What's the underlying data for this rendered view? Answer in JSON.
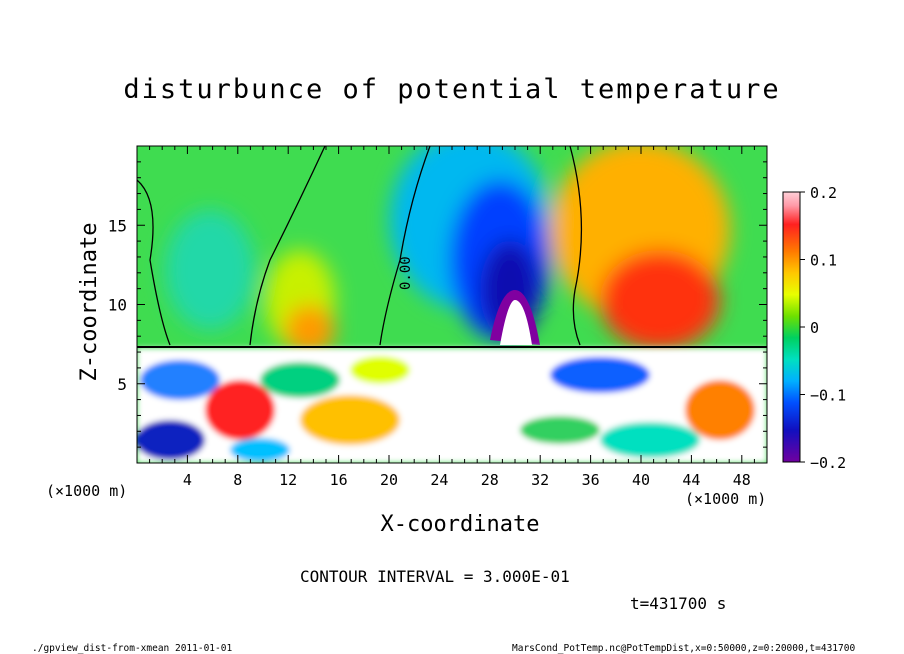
{
  "chart_data": {
    "type": "heatmap",
    "title": "disturbunce of potential temperature",
    "xlabel": "X-coordinate",
    "ylabel": "Z-coordinate",
    "x_unit": "(×1000 m)",
    "x_unit_right": "(×1000 m)",
    "y_unit": "",
    "xlim": [
      0,
      50
    ],
    "ylim": [
      0,
      20
    ],
    "x_ticks": [
      4,
      8,
      12,
      16,
      20,
      24,
      28,
      32,
      36,
      40,
      44,
      48
    ],
    "y_ticks": [
      5,
      10,
      15
    ],
    "colorbar": {
      "min": -0.2,
      "max": 0.2,
      "ticks": [
        "0.2",
        "0.1",
        "0",
        "−0.1",
        "−0.2"
      ]
    },
    "contour_label": "0.00",
    "grid": false
  },
  "contour_interval": "CONTOUR INTERVAL = 3.000E-01",
  "timestamp": "t=431700 s",
  "footer_left": "./gpview_dist-from-xmean   2011-01-01",
  "footer_right": "MarsCond_PotTemp.nc@PotTempDist,x=0:50000,z=0:20000,t=431700"
}
